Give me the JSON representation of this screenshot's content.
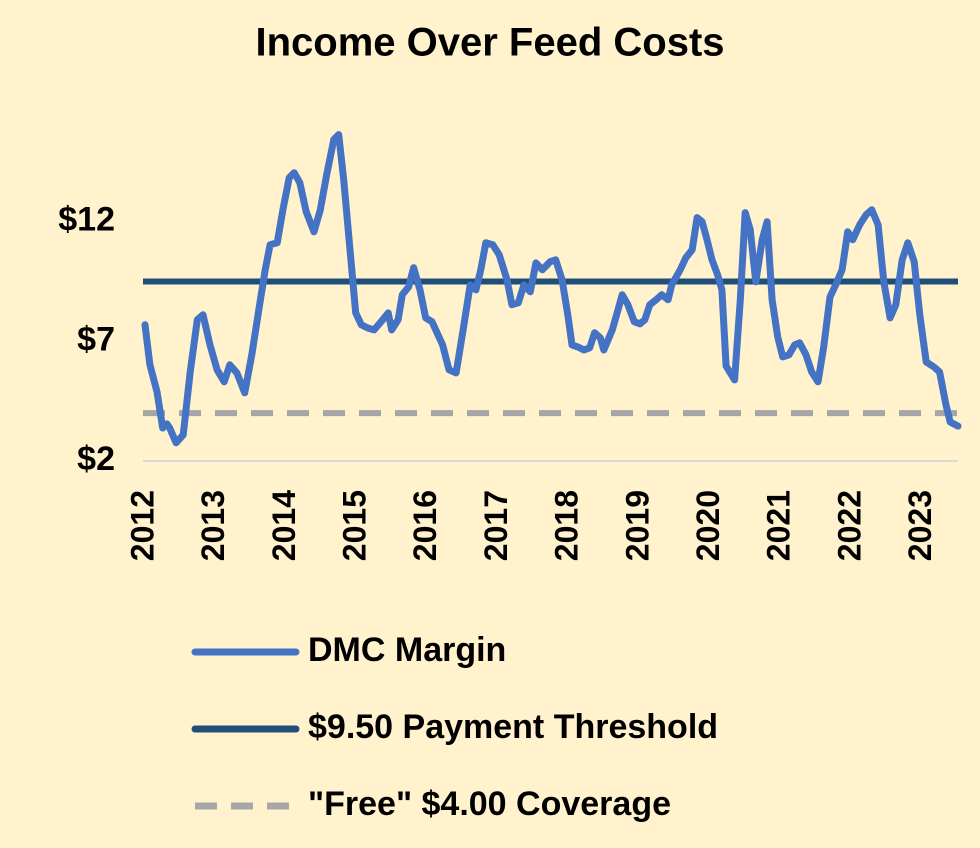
{
  "chart_data": {
    "type": "line",
    "title": "Income Over Feed Costs",
    "x": [
      2012.0,
      2012.07,
      2012.17,
      2012.25,
      2012.31,
      2012.35,
      2012.44,
      2012.54,
      2012.64,
      2012.74,
      2012.82,
      2012.92,
      2013.02,
      2013.12,
      2013.2,
      2013.3,
      2013.41,
      2013.51,
      2013.61,
      2013.7,
      2013.77,
      2013.87,
      2013.95,
      2014.04,
      2014.11,
      2014.19,
      2014.28,
      2014.39,
      2014.48,
      2014.57,
      2014.67,
      2014.74,
      2014.81,
      2014.9,
      2014.98,
      2015.06,
      2015.15,
      2015.24,
      2015.34,
      2015.44,
      2015.49,
      2015.58,
      2015.64,
      2015.73,
      2015.8,
      2015.89,
      2015.97,
      2016.06,
      2016.13,
      2016.21,
      2016.3,
      2016.4,
      2016.5,
      2016.6,
      2016.68,
      2016.75,
      2016.82,
      2016.92,
      2017.01,
      2017.12,
      2017.19,
      2017.28,
      2017.36,
      2017.45,
      2017.53,
      2017.62,
      2017.73,
      2017.81,
      2017.9,
      2017.98,
      2018.04,
      2018.12,
      2018.21,
      2018.29,
      2018.36,
      2018.44,
      2018.49,
      2018.61,
      2018.69,
      2018.75,
      2018.83,
      2018.92,
      2019.0,
      2019.07,
      2019.14,
      2019.23,
      2019.31,
      2019.4,
      2019.45,
      2019.57,
      2019.65,
      2019.74,
      2019.81,
      2019.88,
      2019.95,
      2020.02,
      2020.1,
      2020.16,
      2020.22,
      2020.27,
      2020.34,
      2020.42,
      2020.49,
      2020.56,
      2020.64,
      2020.73,
      2020.8,
      2020.87,
      2020.95,
      2021.02,
      2021.11,
      2021.19,
      2021.26,
      2021.35,
      2021.43,
      2021.52,
      2021.6,
      2021.69,
      2021.77,
      2021.86,
      2021.94,
      2022.01,
      2022.11,
      2022.2,
      2022.28,
      2022.37,
      2022.45,
      2022.54,
      2022.62,
      2022.71,
      2022.79,
      2022.88,
      2022.96,
      2023.05,
      2023.16,
      2023.24,
      2023.33,
      2023.39,
      2023.5
    ],
    "series": [
      {
        "name": "DMC Margin",
        "color": "#4472c4",
        "values": [
          7.69,
          6.02,
          4.89,
          3.38,
          3.55,
          3.38,
          2.76,
          3.09,
          5.72,
          7.9,
          8.11,
          6.85,
          5.81,
          5.31,
          6.02,
          5.68,
          4.85,
          6.44,
          8.32,
          9.99,
          11.04,
          11.12,
          12.5,
          13.84,
          14.05,
          13.63,
          12.42,
          11.58,
          12.5,
          13.97,
          15.43,
          15.64,
          13.76,
          10.83,
          8.19,
          7.69,
          7.56,
          7.48,
          7.82,
          8.19,
          7.48,
          7.9,
          8.95,
          9.28,
          10.08,
          9.15,
          7.98,
          7.82,
          7.36,
          6.85,
          5.81,
          5.68,
          7.48,
          9.36,
          9.15,
          9.99,
          11.12,
          11.04,
          10.62,
          9.57,
          8.53,
          8.61,
          9.36,
          9.07,
          10.28,
          9.99,
          10.33,
          10.41,
          9.57,
          8.11,
          6.85,
          6.77,
          6.64,
          6.73,
          7.36,
          7.15,
          6.64,
          7.48,
          8.32,
          8.95,
          8.53,
          7.82,
          7.73,
          7.9,
          8.53,
          8.74,
          8.95,
          8.74,
          9.36,
          9.99,
          10.49,
          10.83,
          12.17,
          12.0,
          11.25,
          10.41,
          9.78,
          9.15,
          5.97,
          5.72,
          5.39,
          8.74,
          12.38,
          11.67,
          9.49,
          11.25,
          12.0,
          8.74,
          7.19,
          6.35,
          6.44,
          6.85,
          6.94,
          6.44,
          5.72,
          5.31,
          6.77,
          8.86,
          9.36,
          9.99,
          11.58,
          11.25,
          11.87,
          12.29,
          12.5,
          11.87,
          9.49,
          7.98,
          8.53,
          10.41,
          11.12,
          10.33,
          8.11,
          6.14,
          5.93,
          5.72,
          4.34,
          3.63,
          3.46
        ]
      }
    ],
    "reference_lines": [
      {
        "name": "$9.50 Payment Threshold",
        "value": 9.5,
        "color": "#1f4e79",
        "dashed": false
      },
      {
        "name": "\"Free\" $4.00 Coverage",
        "value": 4.0,
        "color": "#a6a6a6",
        "dashed": true
      }
    ],
    "xlim": [
      2012,
      2023.5
    ],
    "xticks": [
      2012,
      2013,
      2014,
      2015,
      2016,
      2017,
      2018,
      2019,
      2020,
      2021,
      2022,
      2023
    ],
    "ylim": [
      2,
      16
    ],
    "yticks": [
      {
        "value": 2,
        "label": "$2"
      },
      {
        "value": 7,
        "label": "$7"
      },
      {
        "value": 12,
        "label": "$12"
      }
    ],
    "legend": "bottom"
  }
}
